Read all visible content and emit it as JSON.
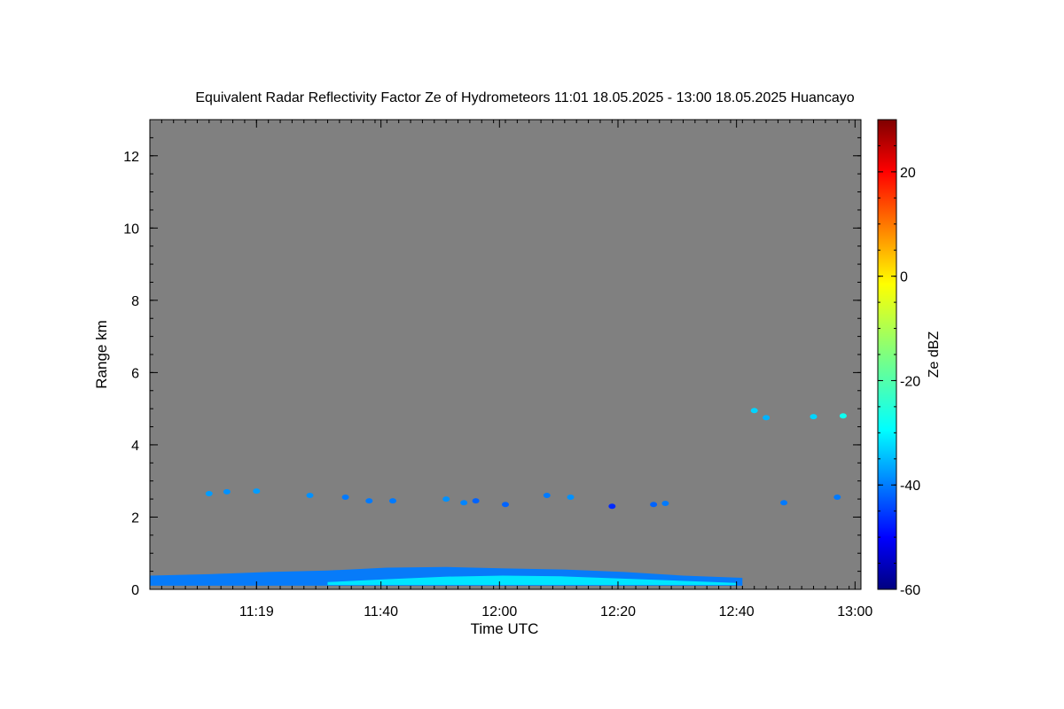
{
  "chart_data": {
    "type": "heatmap",
    "title": "Equivalent Radar Reflectivity Factor Ze of Hydrometeors   11:01 18.05.2025 - 13:00 18.05.2025 Huancayo",
    "xlabel": "Time UTC",
    "ylabel": "Range km",
    "x_range": [
      "11:01",
      "13:01"
    ],
    "x_ticks": [
      "11:19",
      "11:40",
      "12:00",
      "12:20",
      "12:40",
      "13:00"
    ],
    "ylim": [
      0,
      13
    ],
    "y_ticks": [
      "0",
      "2",
      "4",
      "6",
      "8",
      "10",
      "12"
    ],
    "background_color": "#808080",
    "colorbar": {
      "label": "Ze dBZ",
      "range": [
        -60,
        30
      ],
      "ticks": [
        "-60",
        "-40",
        "-20",
        "0",
        "20"
      ],
      "colormap": "jet"
    },
    "echoes": [
      {
        "name": "boundary layer",
        "time_start": "11:01",
        "time_end": "12:41",
        "range_bottom_km": 0.1,
        "range_top_km": [
          0.38,
          0.42,
          0.48,
          0.52,
          0.6,
          0.62,
          0.58,
          0.55,
          0.48,
          0.38,
          0.32
        ],
        "ze_dbz": -38
      },
      {
        "name": "boundary layer core",
        "time_start": "11:31",
        "time_end": "12:40",
        "range_bottom_km": 0.12,
        "range_top_km": [
          0.2,
          0.28,
          0.35,
          0.38,
          0.36,
          0.3,
          0.24,
          0.18
        ],
        "ze_dbz": -28
      },
      {
        "name": "cloud",
        "time": "11:11",
        "range_km": 2.65,
        "ze_dbz": -35
      },
      {
        "name": "cloud",
        "time": "11:14",
        "range_km": 2.7,
        "ze_dbz": -36
      },
      {
        "name": "cloud",
        "time": "11:19",
        "range_km": 2.72,
        "ze_dbz": -35
      },
      {
        "name": "cloud",
        "time": "11:28",
        "range_km": 2.6,
        "ze_dbz": -36
      },
      {
        "name": "cloud",
        "time": "11:34",
        "range_km": 2.55,
        "ze_dbz": -38
      },
      {
        "name": "cloud",
        "time": "11:38",
        "range_km": 2.45,
        "ze_dbz": -38
      },
      {
        "name": "cloud",
        "time": "11:42",
        "range_km": 2.45,
        "ze_dbz": -38
      },
      {
        "name": "cloud",
        "time": "11:51",
        "range_km": 2.5,
        "ze_dbz": -36
      },
      {
        "name": "cloud",
        "time": "11:54",
        "range_km": 2.4,
        "ze_dbz": -37
      },
      {
        "name": "cloud",
        "time": "11:56",
        "range_km": 2.45,
        "ze_dbz": -40
      },
      {
        "name": "cloud",
        "time": "12:01",
        "range_km": 2.35,
        "ze_dbz": -40
      },
      {
        "name": "cloud",
        "time": "12:08",
        "range_km": 2.6,
        "ze_dbz": -38
      },
      {
        "name": "cloud",
        "time": "12:12",
        "range_km": 2.55,
        "ze_dbz": -36
      },
      {
        "name": "cloud",
        "time": "12:19",
        "range_km": 2.3,
        "ze_dbz": -45
      },
      {
        "name": "cloud",
        "time": "12:26",
        "range_km": 2.35,
        "ze_dbz": -40
      },
      {
        "name": "cloud",
        "time": "12:28",
        "range_km": 2.38,
        "ze_dbz": -38
      },
      {
        "name": "cloud",
        "time": "12:48",
        "range_km": 2.4,
        "ze_dbz": -38
      },
      {
        "name": "cloud",
        "time": "12:57",
        "range_km": 2.55,
        "ze_dbz": -38
      },
      {
        "name": "cloud",
        "time": "12:43",
        "range_km": 4.95,
        "ze_dbz": -30
      },
      {
        "name": "cloud",
        "time": "12:45",
        "range_km": 4.75,
        "ze_dbz": -33
      },
      {
        "name": "cloud",
        "time": "12:53",
        "range_km": 4.78,
        "ze_dbz": -30
      },
      {
        "name": "cloud",
        "time": "12:58",
        "range_km": 4.8,
        "ze_dbz": -25
      }
    ]
  }
}
